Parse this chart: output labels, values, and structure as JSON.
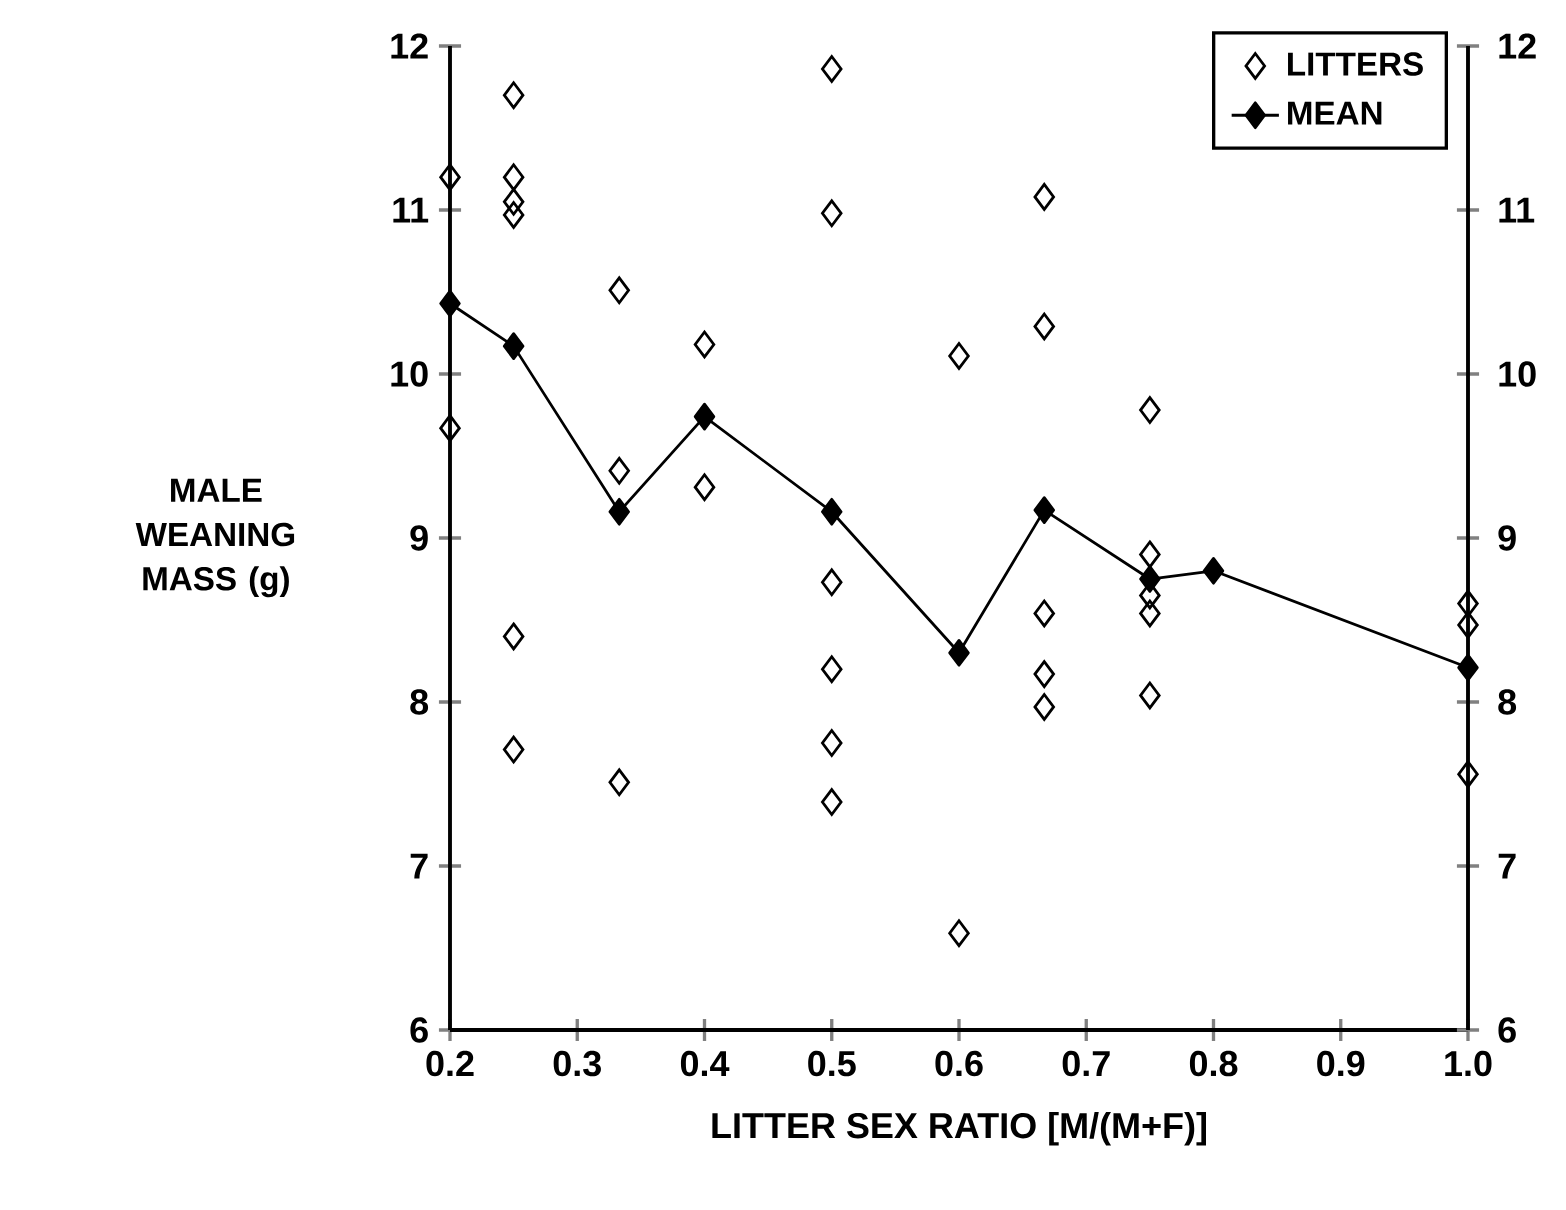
{
  "chart_data": {
    "type": "scatter",
    "xlabel": "LITTER SEX RATIO [M/(M+F)]",
    "ylabel": "MALE WEANING MASS (g)",
    "xlim": [
      0.2,
      1.0
    ],
    "xticks": [
      0.2,
      0.3,
      0.4,
      0.5,
      0.6,
      0.7,
      0.8,
      0.9,
      {
        "value": 1.0,
        "label": "1.0"
      }
    ],
    "ylim": [
      6,
      12
    ],
    "yticks": [
      6,
      7,
      8,
      9,
      10,
      11,
      12
    ],
    "y2lim": [
      6,
      12
    ],
    "y2ticks": [
      6,
      7,
      8,
      9,
      10,
      11,
      12
    ],
    "legend": "top right",
    "grid": false,
    "series": [
      {
        "name": "LITTERS",
        "marker": "diamond",
        "color": "#000000",
        "x": [
          0.2,
          0.2,
          0.25,
          0.25,
          0.25,
          0.25,
          0.25,
          0.25,
          0.333,
          0.333,
          0.333,
          0.4,
          0.4,
          0.5,
          0.5,
          0.5,
          0.5,
          0.5,
          0.5,
          0.6,
          0.6,
          0.667,
          0.667,
          0.667,
          0.667,
          0.667,
          0.75,
          0.75,
          0.75,
          0.75,
          0.75,
          1.0,
          1.0,
          1.0
        ],
        "values": [
          11.2,
          9.67,
          11.7,
          11.2,
          11.05,
          10.97,
          8.4,
          7.71,
          10.51,
          9.41,
          7.51,
          10.18,
          9.31,
          11.86,
          10.98,
          8.73,
          8.2,
          7.75,
          7.39,
          10.11,
          6.59,
          11.08,
          10.29,
          8.54,
          8.17,
          7.97,
          9.78,
          8.9,
          8.65,
          8.54,
          8.04,
          8.6,
          8.47,
          7.56
        ]
      },
      {
        "name": "MEAN",
        "type": "line",
        "marker": "diamond",
        "color": "#000000",
        "x": [
          0.2,
          0.25,
          0.333,
          0.4,
          0.5,
          0.6,
          0.667,
          0.75,
          0.8,
          1.0
        ],
        "values": [
          10.43,
          10.17,
          9.16,
          9.74,
          9.16,
          8.3,
          9.17,
          8.75,
          8.8,
          8.21
        ]
      }
    ]
  }
}
